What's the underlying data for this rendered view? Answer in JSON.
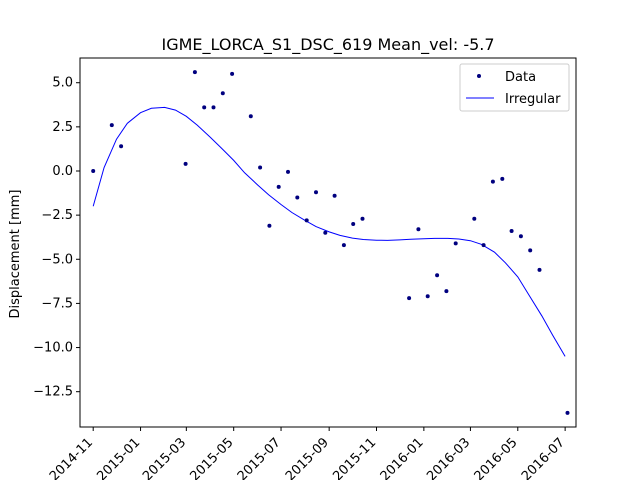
{
  "chart_data": {
    "type": "scatter",
    "title": "IGME_LORCA_S1_DSC_619    Mean_vel: -5.7",
    "xlabel": "",
    "ylabel": "Displacement [mm]",
    "xlim": [
      "2014-10-15",
      "2016-07-15"
    ],
    "ylim": [
      -14.5,
      6.4
    ],
    "x_ticks": [
      "2014-11",
      "2015-01",
      "2015-03",
      "2015-05",
      "2015-07",
      "2015-09",
      "2015-11",
      "2016-01",
      "2016-03",
      "2016-05",
      "2016-07"
    ],
    "y_ticks": [
      5.0,
      2.5,
      0.0,
      -2.5,
      -5.0,
      -7.5,
      -10.0,
      -12.5
    ],
    "y_tick_labels": [
      "5.0",
      "2.5",
      "0.0",
      "−2.5",
      "−5.0",
      "−7.5",
      "−10.0",
      "−12.5"
    ],
    "grid": false,
    "legend_position": "top-right",
    "series": [
      {
        "name": "Data",
        "kind": "scatter",
        "color": "#00007f",
        "points": [
          {
            "x": "2014-11-01",
            "y": 0.0
          },
          {
            "x": "2014-11-25",
            "y": 2.6
          },
          {
            "x": "2014-12-07",
            "y": 1.4
          },
          {
            "x": "2015-02-28",
            "y": 0.4
          },
          {
            "x": "2015-03-12",
            "y": 5.6
          },
          {
            "x": "2015-03-24",
            "y": 3.6
          },
          {
            "x": "2015-04-05",
            "y": 3.6
          },
          {
            "x": "2015-04-17",
            "y": 4.4
          },
          {
            "x": "2015-04-29",
            "y": 5.5
          },
          {
            "x": "2015-05-23",
            "y": 3.1
          },
          {
            "x": "2015-06-04",
            "y": 0.2
          },
          {
            "x": "2015-06-16",
            "y": -3.1
          },
          {
            "x": "2015-06-28",
            "y": -0.9
          },
          {
            "x": "2015-07-10",
            "y": -0.05
          },
          {
            "x": "2015-07-22",
            "y": -1.5
          },
          {
            "x": "2015-08-03",
            "y": -2.8
          },
          {
            "x": "2015-08-15",
            "y": -1.2
          },
          {
            "x": "2015-08-27",
            "y": -3.5
          },
          {
            "x": "2015-09-08",
            "y": -1.4
          },
          {
            "x": "2015-09-20",
            "y": -4.2
          },
          {
            "x": "2015-10-02",
            "y": -3.0
          },
          {
            "x": "2015-10-14",
            "y": -2.7
          },
          {
            "x": "2015-12-13",
            "y": -7.2
          },
          {
            "x": "2015-12-25",
            "y": -3.3
          },
          {
            "x": "2016-01-06",
            "y": -7.1
          },
          {
            "x": "2016-01-18",
            "y": -5.9
          },
          {
            "x": "2016-01-30",
            "y": -6.8
          },
          {
            "x": "2016-02-11",
            "y": -4.1
          },
          {
            "x": "2016-03-06",
            "y": -2.7
          },
          {
            "x": "2016-03-18",
            "y": -4.2
          },
          {
            "x": "2016-03-30",
            "y": -0.6
          },
          {
            "x": "2016-04-11",
            "y": -0.45
          },
          {
            "x": "2016-04-23",
            "y": -3.4
          },
          {
            "x": "2016-05-05",
            "y": -3.7
          },
          {
            "x": "2016-05-17",
            "y": -4.5
          },
          {
            "x": "2016-05-29",
            "y": -5.6
          },
          {
            "x": "2016-07-04",
            "y": -13.7
          }
        ]
      },
      {
        "name": "Irregular",
        "kind": "line",
        "color": "#0000ff",
        "points": [
          {
            "x": "2014-11-01",
            "y": -2.0
          },
          {
            "x": "2014-11-15",
            "y": 0.2
          },
          {
            "x": "2014-12-01",
            "y": 1.8
          },
          {
            "x": "2014-12-15",
            "y": 2.7
          },
          {
            "x": "2015-01-01",
            "y": 3.3
          },
          {
            "x": "2015-01-15",
            "y": 3.55
          },
          {
            "x": "2015-02-01",
            "y": 3.6
          },
          {
            "x": "2015-02-15",
            "y": 3.45
          },
          {
            "x": "2015-03-01",
            "y": 3.1
          },
          {
            "x": "2015-03-15",
            "y": 2.6
          },
          {
            "x": "2015-04-01",
            "y": 1.9
          },
          {
            "x": "2015-04-15",
            "y": 1.3
          },
          {
            "x": "2015-05-01",
            "y": 0.6
          },
          {
            "x": "2015-05-15",
            "y": -0.1
          },
          {
            "x": "2015-06-01",
            "y": -0.8
          },
          {
            "x": "2015-06-15",
            "y": -1.35
          },
          {
            "x": "2015-07-01",
            "y": -1.9
          },
          {
            "x": "2015-07-15",
            "y": -2.35
          },
          {
            "x": "2015-08-01",
            "y": -2.8
          },
          {
            "x": "2015-08-15",
            "y": -3.15
          },
          {
            "x": "2015-09-01",
            "y": -3.45
          },
          {
            "x": "2015-09-15",
            "y": -3.65
          },
          {
            "x": "2015-10-01",
            "y": -3.8
          },
          {
            "x": "2015-10-15",
            "y": -3.88
          },
          {
            "x": "2015-11-01",
            "y": -3.92
          },
          {
            "x": "2015-11-15",
            "y": -3.93
          },
          {
            "x": "2015-12-01",
            "y": -3.9
          },
          {
            "x": "2015-12-15",
            "y": -3.87
          },
          {
            "x": "2016-01-01",
            "y": -3.84
          },
          {
            "x": "2016-01-15",
            "y": -3.82
          },
          {
            "x": "2016-02-01",
            "y": -3.82
          },
          {
            "x": "2016-02-15",
            "y": -3.85
          },
          {
            "x": "2016-03-01",
            "y": -3.95
          },
          {
            "x": "2016-03-15",
            "y": -4.15
          },
          {
            "x": "2016-04-01",
            "y": -4.6
          },
          {
            "x": "2016-04-15",
            "y": -5.2
          },
          {
            "x": "2016-05-01",
            "y": -6.0
          },
          {
            "x": "2016-05-15",
            "y": -7.0
          },
          {
            "x": "2016-06-01",
            "y": -8.2
          },
          {
            "x": "2016-06-15",
            "y": -9.3
          },
          {
            "x": "2016-07-01",
            "y": -10.5
          }
        ]
      }
    ]
  }
}
